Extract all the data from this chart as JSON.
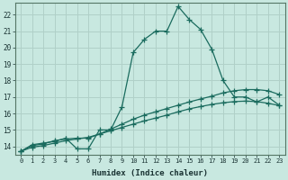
{
  "title": "",
  "xlabel": "Humidex (Indice chaleur)",
  "bg_color": "#c8e8e0",
  "grid_color": "#b0d0c8",
  "line_color": "#1a6b5e",
  "tick_color": "#1a3333",
  "xmin": -0.5,
  "xmax": 23.5,
  "ymin": 13.5,
  "ymax": 22.7,
  "xticks": [
    0,
    1,
    2,
    3,
    4,
    5,
    6,
    7,
    8,
    9,
    10,
    11,
    12,
    13,
    14,
    15,
    16,
    17,
    18,
    19,
    20,
    21,
    22,
    23
  ],
  "yticks": [
    14,
    15,
    16,
    17,
    18,
    19,
    20,
    21,
    22
  ],
  "line1_x": [
    0,
    1,
    2,
    3,
    4,
    5,
    6,
    7,
    8,
    9,
    10,
    11,
    12,
    13,
    14,
    15,
    16,
    17,
    18,
    19,
    20,
    21,
    22,
    23
  ],
  "line1_y": [
    13.7,
    14.1,
    14.2,
    14.3,
    14.5,
    13.85,
    13.85,
    15.0,
    15.0,
    16.4,
    19.7,
    20.5,
    21.0,
    21.0,
    22.5,
    21.7,
    21.1,
    19.9,
    18.0,
    17.0,
    17.0,
    16.7,
    17.0,
    16.5
  ],
  "line2_x": [
    0,
    1,
    2,
    3,
    4,
    5,
    6,
    7,
    8,
    9,
    10,
    11,
    12,
    13,
    14,
    15,
    16,
    17,
    18,
    19,
    20,
    21,
    22,
    23
  ],
  "line2_y": [
    13.7,
    14.05,
    14.15,
    14.35,
    14.45,
    14.5,
    14.5,
    14.75,
    15.05,
    15.35,
    15.65,
    15.9,
    16.1,
    16.3,
    16.5,
    16.7,
    16.88,
    17.05,
    17.25,
    17.38,
    17.45,
    17.45,
    17.38,
    17.15
  ],
  "line3_x": [
    0,
    1,
    2,
    3,
    4,
    5,
    6,
    7,
    8,
    9,
    10,
    11,
    12,
    13,
    14,
    15,
    16,
    17,
    18,
    19,
    20,
    21,
    22,
    23
  ],
  "line3_y": [
    13.7,
    13.95,
    14.05,
    14.2,
    14.35,
    14.45,
    14.55,
    14.75,
    14.95,
    15.15,
    15.35,
    15.55,
    15.72,
    15.9,
    16.1,
    16.28,
    16.42,
    16.55,
    16.65,
    16.72,
    16.75,
    16.72,
    16.62,
    16.48
  ]
}
